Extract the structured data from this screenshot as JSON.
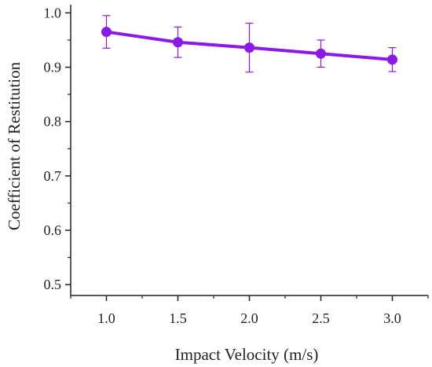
{
  "chart_data": {
    "type": "line",
    "xlabel": "Impact Velocity (m/s)",
    "ylabel": "Coefficient of Restitution",
    "x": [
      1.0,
      1.5,
      2.0,
      2.5,
      3.0
    ],
    "x_tick_labels": [
      "1.0",
      "1.5",
      "2.0",
      "2.5",
      "3.0"
    ],
    "y_tick_values": [
      0.5,
      0.6,
      0.7,
      0.8,
      0.9,
      1.0
    ],
    "y_tick_labels": [
      "0.5",
      "0.6",
      "0.7",
      "0.8",
      "0.9",
      "1.0"
    ],
    "xlim": [
      0.75,
      3.25
    ],
    "ylim": [
      0.48,
      1.015
    ],
    "series": [
      {
        "values": [
          0.965,
          0.946,
          0.936,
          0.925,
          0.914
        ],
        "error": [
          0.03,
          0.028,
          0.045,
          0.025,
          0.022
        ],
        "color": "#8B1AE8"
      }
    ],
    "grid": false,
    "legend": "none"
  }
}
